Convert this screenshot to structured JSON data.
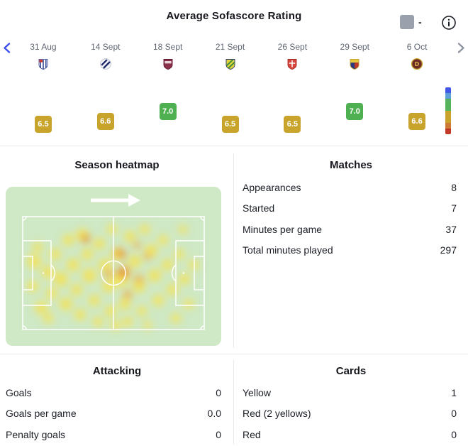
{
  "header": {
    "title": "Average Sofascore Rating",
    "average_value": "-"
  },
  "rating_chart": {
    "matches": [
      {
        "date": "31 Aug",
        "rating": "6.5",
        "badge_color": "#c9a42d"
      },
      {
        "date": "14 Sept",
        "rating": "6.6",
        "badge_color": "#c9a42d"
      },
      {
        "date": "18 Sept",
        "rating": "7.0",
        "badge_color": "#4fb052"
      },
      {
        "date": "21 Sept",
        "rating": "6.5",
        "badge_color": "#c9a42d"
      },
      {
        "date": "26 Sept",
        "rating": "6.5",
        "badge_color": "#c9a42d"
      },
      {
        "date": "29 Sept",
        "rating": "7.0",
        "badge_color": "#4fb052"
      },
      {
        "date": "6 Oct",
        "rating": "6.6",
        "badge_color": "#c9a42d"
      }
    ],
    "scale": [
      {
        "color": "#4257e5",
        "h": 8
      },
      {
        "color": "#5e9fd8",
        "h": 8
      },
      {
        "color": "#57b25c",
        "h": 17
      },
      {
        "color": "#c9a42d",
        "h": 17
      },
      {
        "color": "#cc7a33",
        "h": 8
      },
      {
        "color": "#c13a28",
        "h": 8
      }
    ]
  },
  "heatmap": {
    "title": "Season heatmap",
    "pitch_color": "#cfe8c5",
    "levels": [
      "rgba(250,226,70,0.78)",
      "rgba(243,157,38,0.78)",
      "rgba(206,80,28,0.85)"
    ],
    "points": [
      [
        40,
        105,
        10,
        0
      ],
      [
        38,
        140,
        8,
        0
      ],
      [
        50,
        170,
        9,
        0
      ],
      [
        45,
        85,
        7,
        0
      ],
      [
        60,
        120,
        9,
        0
      ],
      [
        65,
        150,
        8,
        0
      ],
      [
        70,
        95,
        8,
        0
      ],
      [
        78,
        130,
        10,
        0
      ],
      [
        85,
        165,
        9,
        0
      ],
      [
        88,
        75,
        8,
        0
      ],
      [
        95,
        110,
        9,
        0
      ],
      [
        100,
        145,
        8,
        0
      ],
      [
        105,
        180,
        8,
        0
      ],
      [
        108,
        68,
        9,
        0
      ],
      [
        115,
        95,
        8,
        0
      ],
      [
        118,
        125,
        10,
        0
      ],
      [
        125,
        160,
        8,
        0
      ],
      [
        130,
        190,
        7,
        0
      ],
      [
        132,
        80,
        8,
        0
      ],
      [
        140,
        110,
        9,
        0
      ],
      [
        145,
        140,
        9,
        0
      ],
      [
        148,
        175,
        8,
        0
      ],
      [
        150,
        60,
        7,
        0
      ],
      [
        158,
        95,
        9,
        0
      ],
      [
        162,
        130,
        11,
        0
      ],
      [
        168,
        165,
        8,
        0
      ],
      [
        172,
        190,
        7,
        0
      ],
      [
        175,
        70,
        8,
        0
      ],
      [
        182,
        105,
        9,
        0
      ],
      [
        188,
        140,
        9,
        0
      ],
      [
        192,
        175,
        7,
        0
      ],
      [
        196,
        60,
        7,
        0
      ],
      [
        205,
        90,
        9,
        0
      ],
      [
        210,
        125,
        9,
        0
      ],
      [
        215,
        160,
        8,
        0
      ],
      [
        222,
        75,
        7,
        0
      ],
      [
        228,
        110,
        8,
        0
      ],
      [
        235,
        145,
        8,
        0
      ],
      [
        240,
        185,
        7,
        0
      ],
      [
        245,
        95,
        7,
        0
      ],
      [
        252,
        130,
        8,
        0
      ],
      [
        258,
        165,
        7,
        0
      ],
      [
        250,
        60,
        6,
        0
      ],
      [
        265,
        110,
        7,
        0
      ],
      [
        60,
        185,
        7,
        0
      ],
      [
        155,
        195,
        7,
        0
      ],
      [
        200,
        195,
        6,
        0
      ],
      [
        113,
        73,
        6,
        1
      ],
      [
        160,
        93,
        7,
        1
      ],
      [
        167,
        120,
        9,
        1
      ],
      [
        188,
        130,
        6,
        1
      ],
      [
        200,
        98,
        5,
        1
      ],
      [
        172,
        152,
        6,
        1
      ],
      [
        145,
        122,
        6,
        1
      ],
      [
        185,
        82,
        5,
        1
      ],
      [
        163,
        121,
        4,
        2
      ],
      [
        166,
        96,
        3.5,
        2
      ],
      [
        113,
        73,
        3,
        2
      ]
    ]
  },
  "matches": {
    "title": "Matches",
    "rows": [
      [
        "Appearances",
        "8"
      ],
      [
        "Started",
        "7"
      ],
      [
        "Minutes per game",
        "37"
      ],
      [
        "Total minutes played",
        "297"
      ]
    ]
  },
  "attacking": {
    "title": "Attacking",
    "rows": [
      [
        "Goals",
        "0"
      ],
      [
        "Goals per game",
        "0.0"
      ],
      [
        "Penalty goals",
        "0"
      ]
    ]
  },
  "cards": {
    "title": "Cards",
    "rows": [
      [
        "Yellow",
        "1"
      ],
      [
        "Red (2 yellows)",
        "0"
      ],
      [
        "Red",
        "0"
      ]
    ]
  }
}
